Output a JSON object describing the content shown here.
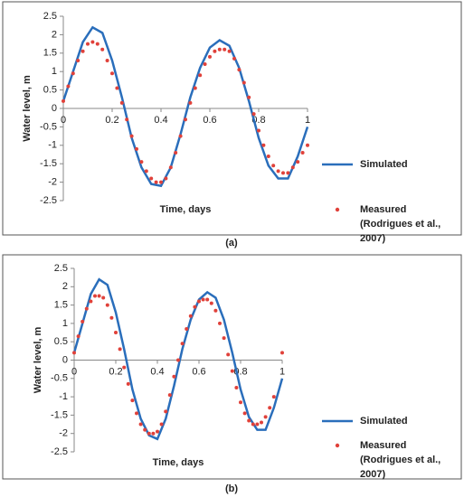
{
  "chart_data": [
    {
      "type": "line",
      "caption": "(a)",
      "xlabel": "Time, days",
      "ylabel": "Water level, m",
      "xlim": [
        0,
        1
      ],
      "ylim": [
        -2.5,
        2.5
      ],
      "xticks": [
        0,
        0.2,
        0.4,
        0.6,
        0.8,
        1
      ],
      "yticks": [
        -2.5,
        -2,
        -1.5,
        -1,
        -0.5,
        0,
        0.5,
        1,
        1.5,
        2,
        2.5
      ],
      "grid": false,
      "series": [
        {
          "name": "Simulated",
          "style": "line",
          "color": "#2a6ebb",
          "x": [
            0,
            0.04,
            0.08,
            0.12,
            0.16,
            0.2,
            0.24,
            0.28,
            0.32,
            0.36,
            0.4,
            0.44,
            0.48,
            0.52,
            0.56,
            0.6,
            0.64,
            0.68,
            0.72,
            0.76,
            0.8,
            0.84,
            0.88,
            0.92,
            0.96,
            1
          ],
          "values": [
            0.2,
            1.0,
            1.8,
            2.2,
            2.05,
            1.3,
            0.3,
            -0.8,
            -1.6,
            -2.05,
            -2.1,
            -1.6,
            -0.7,
            0.3,
            1.1,
            1.65,
            1.85,
            1.7,
            1.1,
            0.2,
            -0.8,
            -1.55,
            -1.9,
            -1.9,
            -1.3,
            -0.5
          ]
        },
        {
          "name": "Measured (Rodrigues et al., 2007)",
          "style": "markers",
          "color": "#e0413a",
          "x": [
            0,
            0.02,
            0.04,
            0.06,
            0.08,
            0.1,
            0.12,
            0.14,
            0.16,
            0.18,
            0.2,
            0.22,
            0.24,
            0.26,
            0.28,
            0.3,
            0.32,
            0.34,
            0.36,
            0.38,
            0.4,
            0.42,
            0.44,
            0.46,
            0.48,
            0.5,
            0.52,
            0.54,
            0.56,
            0.58,
            0.6,
            0.62,
            0.64,
            0.66,
            0.68,
            0.7,
            0.72,
            0.74,
            0.76,
            0.78,
            0.8,
            0.82,
            0.84,
            0.86,
            0.88,
            0.9,
            0.92,
            0.94,
            0.96,
            0.98,
            1
          ],
          "values": [
            0.2,
            0.6,
            0.95,
            1.3,
            1.55,
            1.75,
            1.8,
            1.75,
            1.6,
            1.3,
            0.95,
            0.55,
            0.15,
            -0.3,
            -0.75,
            -1.1,
            -1.45,
            -1.7,
            -1.9,
            -2.0,
            -2.0,
            -1.9,
            -1.6,
            -1.2,
            -0.75,
            -0.3,
            0.15,
            0.55,
            0.9,
            1.2,
            1.4,
            1.55,
            1.6,
            1.6,
            1.55,
            1.35,
            1.05,
            0.7,
            0.3,
            -0.15,
            -0.6,
            -1.0,
            -1.3,
            -1.55,
            -1.7,
            -1.75,
            -1.75,
            -1.6,
            -1.45,
            -1.2,
            -1.0
          ]
        }
      ]
    },
    {
      "type": "line",
      "caption": "(b)",
      "xlabel": "Time, days",
      "ylabel": "Water level, m",
      "xlim": [
        0,
        1
      ],
      "ylim": [
        -2.5,
        2.5
      ],
      "xticks": [
        0,
        0.2,
        0.4,
        0.6,
        0.8,
        1
      ],
      "yticks": [
        -2.5,
        -2,
        -1.5,
        -1,
        -0.5,
        0,
        0.5,
        1,
        1.5,
        2,
        2.5
      ],
      "grid": false,
      "series": [
        {
          "name": "Simulated",
          "style": "line",
          "color": "#2a6ebb",
          "x": [
            0,
            0.04,
            0.08,
            0.12,
            0.16,
            0.2,
            0.24,
            0.28,
            0.32,
            0.36,
            0.4,
            0.44,
            0.48,
            0.52,
            0.56,
            0.6,
            0.64,
            0.68,
            0.72,
            0.76,
            0.8,
            0.84,
            0.88,
            0.92,
            0.96,
            1
          ],
          "values": [
            0.2,
            1.0,
            1.8,
            2.2,
            2.05,
            1.3,
            0.3,
            -0.8,
            -1.6,
            -2.05,
            -2.15,
            -1.6,
            -0.7,
            0.3,
            1.1,
            1.65,
            1.85,
            1.7,
            1.1,
            0.2,
            -0.8,
            -1.55,
            -1.9,
            -1.9,
            -1.3,
            -0.5
          ]
        },
        {
          "name": "Measured (Rodrigues et al., 2007)",
          "style": "markers",
          "color": "#e0413a",
          "x": [
            0,
            0.02,
            0.04,
            0.06,
            0.08,
            0.1,
            0.12,
            0.14,
            0.16,
            0.18,
            0.2,
            0.22,
            0.24,
            0.26,
            0.28,
            0.3,
            0.32,
            0.34,
            0.36,
            0.38,
            0.4,
            0.42,
            0.44,
            0.46,
            0.48,
            0.5,
            0.52,
            0.54,
            0.56,
            0.58,
            0.6,
            0.62,
            0.64,
            0.66,
            0.68,
            0.7,
            0.72,
            0.74,
            0.76,
            0.78,
            0.8,
            0.82,
            0.84,
            0.86,
            0.88,
            0.9,
            0.92,
            0.94,
            0.96,
            1
          ],
          "values": [
            0.2,
            0.65,
            1.05,
            1.4,
            1.6,
            1.75,
            1.75,
            1.7,
            1.5,
            1.15,
            0.75,
            0.3,
            -0.2,
            -0.65,
            -1.1,
            -1.45,
            -1.75,
            -1.9,
            -2.0,
            -2.0,
            -1.95,
            -1.75,
            -1.4,
            -0.95,
            -0.45,
            0.0,
            0.45,
            0.85,
            1.2,
            1.45,
            1.6,
            1.65,
            1.65,
            1.55,
            1.35,
            1.0,
            0.6,
            0.15,
            -0.3,
            -0.75,
            -1.15,
            -1.45,
            -1.65,
            -1.75,
            -1.75,
            -1.7,
            -1.55,
            -1.3,
            -1.0,
            0.2
          ]
        }
      ]
    }
  ]
}
